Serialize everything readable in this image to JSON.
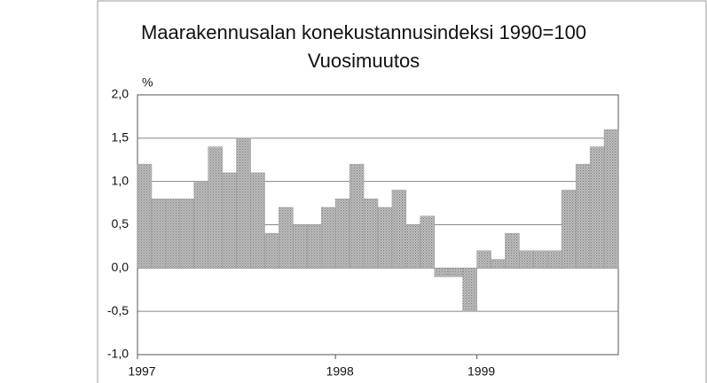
{
  "chart_data": {
    "type": "bar",
    "title": "Maarakennusalan konekustannusindeksi 1990=100",
    "subtitle": "Vuosimuutos",
    "y_label": "%",
    "categories": [
      "1997",
      null,
      null,
      null,
      null,
      null,
      null,
      null,
      null,
      null,
      null,
      null,
      null,
      null,
      "1998",
      null,
      null,
      null,
      null,
      null,
      null,
      null,
      null,
      null,
      "1999",
      null,
      null,
      null,
      null,
      null,
      null,
      null,
      null,
      null
    ],
    "values": [
      1.2,
      0.8,
      0.8,
      0.8,
      1.0,
      1.4,
      1.1,
      1.5,
      1.1,
      0.4,
      0.7,
      0.5,
      0.5,
      0.7,
      0.8,
      1.2,
      0.8,
      0.7,
      0.9,
      0.5,
      0.6,
      -0.1,
      -0.1,
      -0.5,
      0.2,
      0.1,
      0.4,
      0.2,
      0.2,
      0.2,
      0.9,
      1.2,
      1.4,
      1.6
    ],
    "color": "#bdbdbd",
    "ylim": [
      -1,
      2
    ],
    "yticks": [
      {
        "value": -1,
        "label": "-1,0"
      },
      {
        "value": -0.5,
        "label": "-0,5"
      },
      {
        "value": 0,
        "label": "0,0"
      },
      {
        "value": 0.5,
        "label": "0,5"
      },
      {
        "value": 1,
        "label": "1,0"
      },
      {
        "value": 1.5,
        "label": "1,5"
      },
      {
        "value": 2,
        "label": "2,0"
      }
    ],
    "grid": true
  }
}
